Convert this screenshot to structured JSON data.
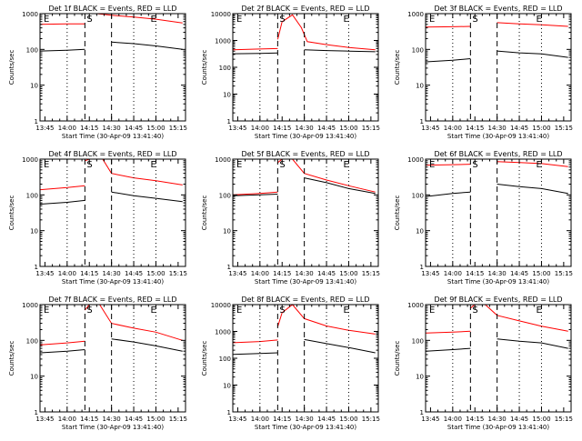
{
  "figure": {
    "layout": "3x3 grid",
    "background": "#ffffff"
  },
  "colors": {
    "events": "#000000",
    "lld": "#ff0000",
    "axis": "#000000"
  },
  "chart_data": [
    {
      "type": "line",
      "title": "Det 1f BLACK = Events, RED = LLD",
      "xlabel": "Start Time (30-Apr-09 13:41:40)",
      "ylabel": "Counts/sec",
      "xlim": [
        "13:41:40",
        "15:20"
      ],
      "ylim": [
        1,
        1000
      ],
      "yscale": "log",
      "xticks": [
        "13:45",
        "14:00",
        "14:15",
        "14:30",
        "14:45",
        "15:00",
        "15:15"
      ],
      "yticks": [
        "1",
        "10",
        "100",
        "1000"
      ],
      "marker_letters": [
        "E",
        "S",
        "E"
      ],
      "dotted_lines": [
        "14:00",
        "14:45",
        "15:00"
      ],
      "dashed_lines": [
        "14:12",
        "14:30"
      ],
      "series": [
        {
          "name": "LLD",
          "color": "#ff0000",
          "segments": [
            {
              "x": [
                "13:42",
                "14:00",
                "14:12"
              ],
              "y": [
                500,
                520,
                520
              ]
            },
            {
              "x": [
                "14:13",
                "14:15",
                "14:20",
                "14:30",
                "14:45",
                "15:00",
                "15:18"
              ],
              "y": [
                1000,
                1000,
                1000,
                900,
                800,
                700,
                550
              ]
            }
          ]
        },
        {
          "name": "Events",
          "color": "#000000",
          "segments": [
            {
              "x": [
                "13:42",
                "14:00",
                "14:12"
              ],
              "y": [
                90,
                95,
                100
              ]
            },
            {
              "x": [
                "14:30",
                "14:45",
                "15:00",
                "15:18"
              ],
              "y": [
                160,
                145,
                125,
                100
              ]
            }
          ]
        }
      ]
    },
    {
      "type": "line",
      "title": "Det 2f BLACK = Events, RED = LLD",
      "xlabel": "Start Time (30-Apr-09 13:41:40)",
      "ylabel": "Counts/sec",
      "xlim": [
        "13:41:40",
        "15:20"
      ],
      "ylim": [
        1,
        10000
      ],
      "yscale": "log",
      "xticks": [
        "13:45",
        "14:00",
        "14:15",
        "14:30",
        "14:45",
        "15:00",
        "15:15"
      ],
      "yticks": [
        "1",
        "10",
        "100",
        "1000",
        "10000"
      ],
      "marker_letters": [
        "E",
        "S",
        "E"
      ],
      "dotted_lines": [
        "14:00",
        "14:45",
        "15:00"
      ],
      "dashed_lines": [
        "14:12",
        "14:30"
      ],
      "series": [
        {
          "name": "LLD",
          "color": "#ff0000",
          "segments": [
            {
              "x": [
                "13:42",
                "14:00",
                "14:12"
              ],
              "y": [
                450,
                480,
                500
              ]
            },
            {
              "x": [
                "14:12",
                "14:15",
                "14:22",
                "14:28",
                "14:32",
                "14:45",
                "15:00",
                "15:18"
              ],
              "y": [
                1100,
                5000,
                9000,
                3000,
                900,
                700,
                550,
                450
              ]
            }
          ]
        },
        {
          "name": "Events",
          "color": "#000000",
          "segments": [
            {
              "x": [
                "13:42",
                "14:00",
                "14:12"
              ],
              "y": [
                320,
                330,
                340
              ]
            },
            {
              "x": [
                "14:30",
                "14:45",
                "15:00",
                "15:18"
              ],
              "y": [
                450,
                420,
                400,
                380
              ]
            }
          ]
        }
      ]
    },
    {
      "type": "line",
      "title": "Det 3f BLACK = Events, RED = LLD",
      "xlabel": "Start Time (30-Apr-09 13:41:40)",
      "ylabel": "Counts/sec",
      "xlim": [
        "13:41:40",
        "15:20"
      ],
      "ylim": [
        1,
        1000
      ],
      "yscale": "log",
      "xticks": [
        "13:45",
        "14:00",
        "14:15",
        "14:30",
        "14:45",
        "15:00",
        "15:15"
      ],
      "yticks": [
        "1",
        "10",
        "100",
        "1000"
      ],
      "marker_letters": [
        "E",
        "S",
        "E"
      ],
      "dotted_lines": [
        "14:00",
        "14:45",
        "15:00"
      ],
      "dashed_lines": [
        "14:12",
        "14:30"
      ],
      "series": [
        {
          "name": "LLD",
          "color": "#ff0000",
          "segments": [
            {
              "x": [
                "13:42",
                "14:00",
                "14:12"
              ],
              "y": [
                420,
                430,
                440
              ]
            },
            {
              "x": [
                "14:30",
                "14:45",
                "15:00",
                "15:18"
              ],
              "y": [
                560,
                520,
                490,
                440
              ]
            }
          ]
        },
        {
          "name": "Events",
          "color": "#000000",
          "segments": [
            {
              "x": [
                "13:42",
                "14:00",
                "14:12"
              ],
              "y": [
                45,
                50,
                55
              ]
            },
            {
              "x": [
                "14:30",
                "14:45",
                "15:00",
                "15:18"
              ],
              "y": [
                90,
                80,
                75,
                60
              ]
            }
          ]
        }
      ]
    },
    {
      "type": "line",
      "title": "Det 4f BLACK = Events, RED = LLD",
      "xlabel": "Start Time (30-Apr-09 13:41:40)",
      "ylabel": "Counts/sec",
      "xlim": [
        "13:41:40",
        "15:20"
      ],
      "ylim": [
        1,
        1000
      ],
      "yscale": "log",
      "xticks": [
        "13:45",
        "14:00",
        "14:15",
        "14:30",
        "14:45",
        "15:00",
        "15:15"
      ],
      "yticks": [
        "1",
        "10",
        "100",
        "1000"
      ],
      "marker_letters": [
        "E",
        "S",
        "E"
      ],
      "dotted_lines": [
        "14:00",
        "14:45",
        "15:00"
      ],
      "dashed_lines": [
        "14:12",
        "14:30"
      ],
      "series": [
        {
          "name": "LLD",
          "color": "#ff0000",
          "segments": [
            {
              "x": [
                "13:42",
                "14:00",
                "14:12"
              ],
              "y": [
                140,
                160,
                180
              ]
            },
            {
              "x": [
                "14:12",
                "14:15",
                "14:20",
                "14:24",
                "14:30",
                "14:45",
                "15:00",
                "15:18"
              ],
              "y": [
                900,
                1000,
                1000,
                1000,
                400,
                300,
                250,
                190
              ]
            }
          ]
        },
        {
          "name": "Events",
          "color": "#000000",
          "segments": [
            {
              "x": [
                "13:42",
                "14:00",
                "14:12"
              ],
              "y": [
                55,
                62,
                70
              ]
            },
            {
              "x": [
                "14:30",
                "14:45",
                "15:00",
                "15:18"
              ],
              "y": [
                120,
                95,
                80,
                65
              ]
            }
          ]
        }
      ]
    },
    {
      "type": "line",
      "title": "Det 5f BLACK = Events, RED = LLD",
      "xlabel": "Start Time (30-Apr-09 13:41:40)",
      "ylabel": "Counts/sec",
      "xlim": [
        "13:41:40",
        "15:20"
      ],
      "ylim": [
        1,
        1000
      ],
      "yscale": "log",
      "xticks": [
        "13:45",
        "14:00",
        "14:15",
        "14:30",
        "14:45",
        "15:00",
        "15:15"
      ],
      "yticks": [
        "1",
        "10",
        "100",
        "1000"
      ],
      "marker_letters": [
        "E",
        "S",
        "E"
      ],
      "dotted_lines": [
        "14:00",
        "14:45",
        "15:00"
      ],
      "dashed_lines": [
        "14:12",
        "14:30"
      ],
      "series": [
        {
          "name": "LLD",
          "color": "#ff0000",
          "segments": [
            {
              "x": [
                "13:42",
                "14:00",
                "14:12"
              ],
              "y": [
                100,
                110,
                120
              ]
            },
            {
              "x": [
                "14:12",
                "14:15",
                "14:22",
                "14:30",
                "14:45",
                "15:00",
                "15:18"
              ],
              "y": [
                800,
                1000,
                1000,
                400,
                260,
                180,
                120
              ]
            }
          ]
        },
        {
          "name": "Events",
          "color": "#000000",
          "segments": [
            {
              "x": [
                "13:42",
                "14:00",
                "14:12"
              ],
              "y": [
                95,
                100,
                105
              ]
            },
            {
              "x": [
                "14:30",
                "14:45",
                "15:00",
                "15:18"
              ],
              "y": [
                300,
                220,
                150,
                110
              ]
            }
          ]
        }
      ]
    },
    {
      "type": "line",
      "title": "Det 6f BLACK = Events, RED = LLD",
      "xlabel": "Start Time (30-Apr-09 13:41:40)",
      "ylabel": "Counts/sec",
      "xlim": [
        "13:41:40",
        "15:20"
      ],
      "ylim": [
        1,
        1000
      ],
      "yscale": "log",
      "xticks": [
        "13:45",
        "14:00",
        "14:15",
        "14:30",
        "14:45",
        "15:00",
        "15:15"
      ],
      "yticks": [
        "1",
        "10",
        "100",
        "1000"
      ],
      "marker_letters": [
        "E",
        "S",
        "E"
      ],
      "dotted_lines": [
        "14:00",
        "14:45",
        "15:00"
      ],
      "dashed_lines": [
        "14:12",
        "14:30"
      ],
      "series": [
        {
          "name": "LLD",
          "color": "#ff0000",
          "segments": [
            {
              "x": [
                "13:42",
                "14:00",
                "14:12"
              ],
              "y": [
                680,
                700,
                720
              ]
            },
            {
              "x": [
                "14:30",
                "14:45",
                "15:00",
                "15:18"
              ],
              "y": [
                850,
                800,
                750,
                620
              ]
            }
          ]
        },
        {
          "name": "Events",
          "color": "#000000",
          "segments": [
            {
              "x": [
                "13:42",
                "14:00",
                "14:12"
              ],
              "y": [
                90,
                110,
                120
              ]
            },
            {
              "x": [
                "14:30",
                "14:45",
                "15:00",
                "15:18"
              ],
              "y": [
                200,
                170,
                150,
                110
              ]
            }
          ]
        }
      ]
    },
    {
      "type": "line",
      "title": "Det 7f BLACK = Events, RED = LLD",
      "xlabel": "Start Time (30-Apr-09 13:41:40)",
      "ylabel": "Counts/sec",
      "xlim": [
        "13:41:40",
        "15:20"
      ],
      "ylim": [
        1,
        1000
      ],
      "yscale": "log",
      "xticks": [
        "13:45",
        "14:00",
        "14:15",
        "14:30",
        "14:45",
        "15:00",
        "15:15"
      ],
      "yticks": [
        "1",
        "10",
        "100",
        "1000"
      ],
      "marker_letters": [
        "E",
        "S",
        "E"
      ],
      "dotted_lines": [
        "14:00",
        "14:45",
        "15:00"
      ],
      "dashed_lines": [
        "14:12",
        "14:30"
      ],
      "series": [
        {
          "name": "LLD",
          "color": "#ff0000",
          "segments": [
            {
              "x": [
                "13:42",
                "14:00",
                "14:12"
              ],
              "y": [
                75,
                85,
                95
              ]
            },
            {
              "x": [
                "14:12",
                "14:15",
                "14:22",
                "14:30",
                "14:45",
                "15:00",
                "15:18"
              ],
              "y": [
                700,
                1000,
                1000,
                300,
                220,
                170,
                100
              ]
            }
          ]
        },
        {
          "name": "Events",
          "color": "#000000",
          "segments": [
            {
              "x": [
                "13:42",
                "14:00",
                "14:12"
              ],
              "y": [
                45,
                50,
                55
              ]
            },
            {
              "x": [
                "14:30",
                "14:45",
                "15:00",
                "15:18"
              ],
              "y": [
                110,
                90,
                70,
                50
              ]
            }
          ]
        }
      ]
    },
    {
      "type": "line",
      "title": "Det 8f BLACK = Events, RED = LLD",
      "xlabel": "Start Time (30-Apr-09 13:41:40)",
      "ylabel": "Counts/sec",
      "xlim": [
        "13:41:40",
        "15:20"
      ],
      "ylim": [
        1,
        10000
      ],
      "yscale": "log",
      "xticks": [
        "13:45",
        "14:00",
        "14:15",
        "14:30",
        "14:45",
        "15:00",
        "15:15"
      ],
      "yticks": [
        "1",
        "10",
        "100",
        "1000",
        "10000"
      ],
      "marker_letters": [
        "E",
        "S",
        "E"
      ],
      "dotted_lines": [
        "14:00",
        "14:45",
        "15:00"
      ],
      "dashed_lines": [
        "14:12",
        "14:30"
      ],
      "series": [
        {
          "name": "LLD",
          "color": "#ff0000",
          "segments": [
            {
              "x": [
                "13:42",
                "14:00",
                "14:12"
              ],
              "y": [
                380,
                420,
                480
              ]
            },
            {
              "x": [
                "14:12",
                "14:15",
                "14:22",
                "14:30",
                "14:45",
                "15:00",
                "15:18"
              ],
              "y": [
                1500,
                5000,
                10000,
                3000,
                1600,
                1100,
                800
              ]
            }
          ]
        },
        {
          "name": "Events",
          "color": "#000000",
          "segments": [
            {
              "x": [
                "13:42",
                "14:00",
                "14:12"
              ],
              "y": [
                140,
                150,
                160
              ]
            },
            {
              "x": [
                "14:30",
                "14:45",
                "15:00",
                "15:18"
              ],
              "y": [
                500,
                350,
                250,
                160
              ]
            }
          ]
        }
      ]
    },
    {
      "type": "line",
      "title": "Det 9f BLACK = Events, RED = LLD",
      "xlabel": "Start Time (30-Apr-09 13:41:40)",
      "ylabel": "Counts/sec",
      "xlim": [
        "13:41:40",
        "15:20"
      ],
      "ylim": [
        1,
        1000
      ],
      "yscale": "log",
      "xticks": [
        "13:45",
        "14:00",
        "14:15",
        "14:30",
        "14:45",
        "15:00",
        "15:15"
      ],
      "yticks": [
        "1",
        "10",
        "100",
        "1000"
      ],
      "marker_letters": [
        "E",
        "S",
        "E"
      ],
      "dotted_lines": [
        "14:00",
        "14:45",
        "15:00"
      ],
      "dashed_lines": [
        "14:12",
        "14:30"
      ],
      "series": [
        {
          "name": "LLD",
          "color": "#ff0000",
          "segments": [
            {
              "x": [
                "13:42",
                "14:00",
                "14:12"
              ],
              "y": [
                160,
                170,
                180
              ]
            },
            {
              "x": [
                "14:12",
                "14:15",
                "14:22",
                "14:30",
                "14:45",
                "15:00",
                "15:18"
              ],
              "y": [
                800,
                1000,
                1000,
                500,
                350,
                250,
                180
              ]
            }
          ]
        },
        {
          "name": "Events",
          "color": "#000000",
          "segments": [
            {
              "x": [
                "13:42",
                "14:00",
                "14:12"
              ],
              "y": [
                50,
                55,
                60
              ]
            },
            {
              "x": [
                "14:30",
                "14:45",
                "15:00",
                "15:18"
              ],
              "y": [
                110,
                95,
                85,
                60
              ]
            }
          ]
        }
      ]
    }
  ]
}
